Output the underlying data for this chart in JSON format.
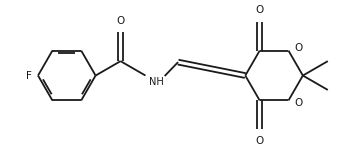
{
  "background_color": "#ffffff",
  "line_color": "#1a1a1a",
  "line_width": 1.3,
  "font_size": 7.5,
  "fig_width": 3.62,
  "fig_height": 1.48,
  "dpi": 100,
  "xlim": [
    0,
    3.62
  ],
  "ylim": [
    0,
    1.48
  ]
}
